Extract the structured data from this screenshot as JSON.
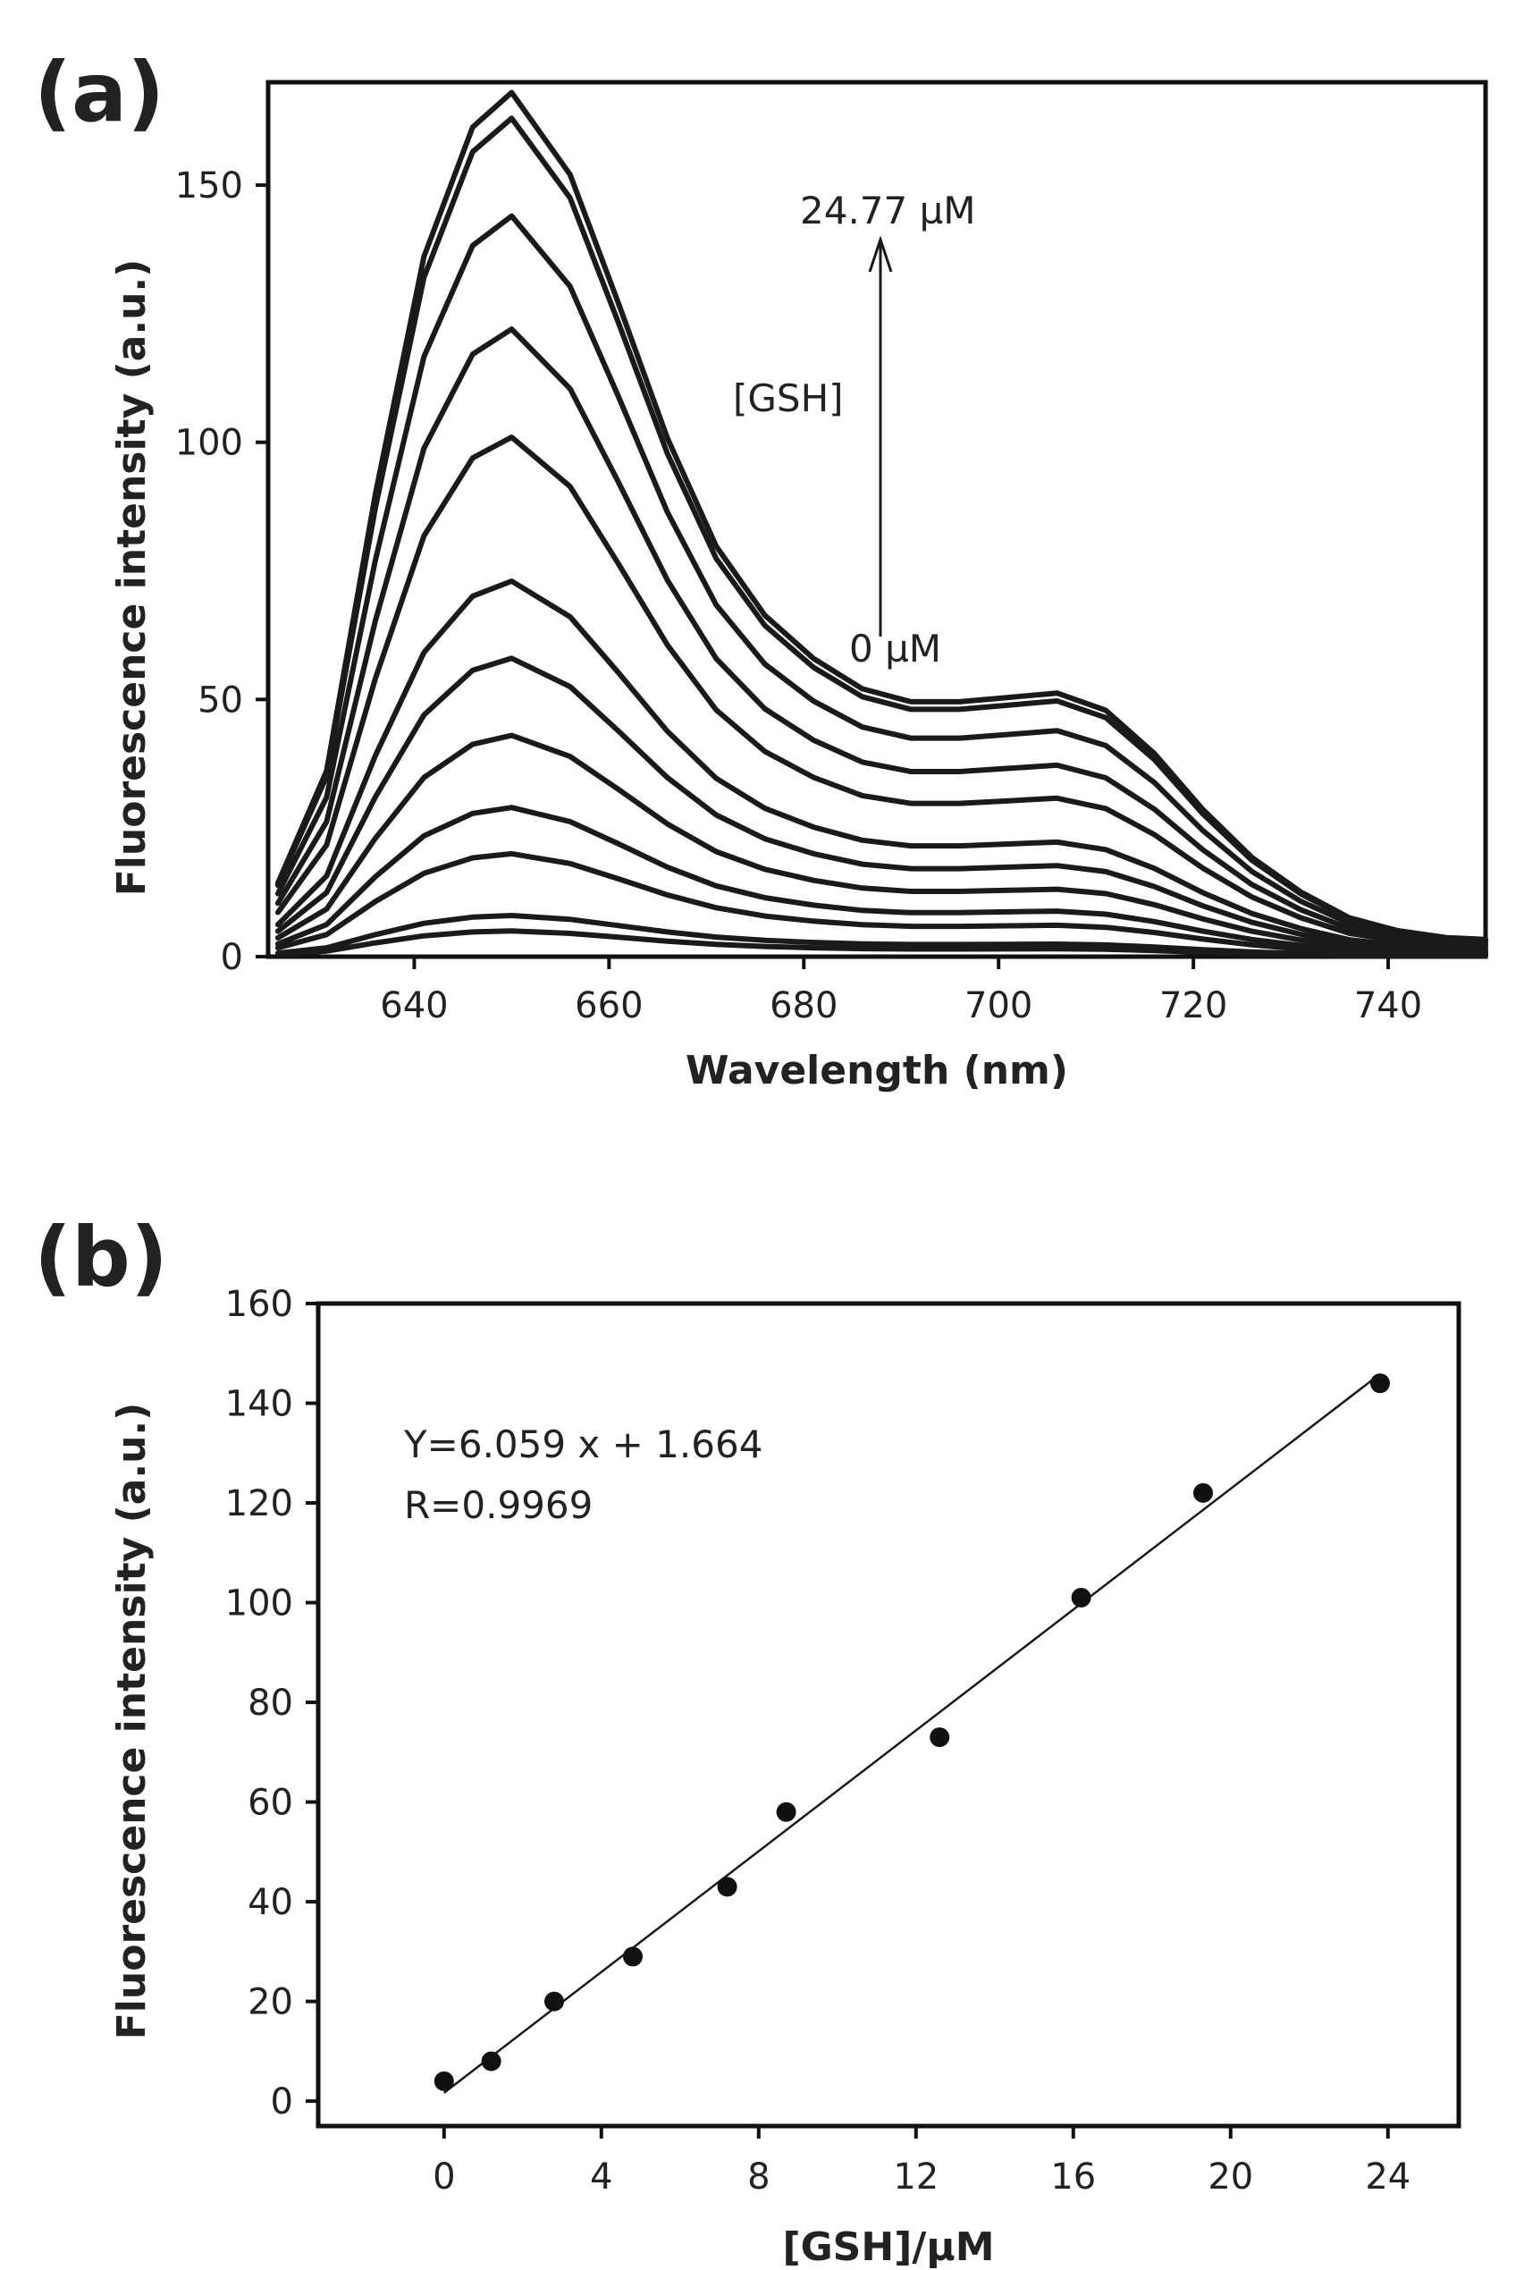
{
  "chart_data": [
    {
      "panel_label": "(a)",
      "type": "line",
      "xlabel": "Wavelength (nm)",
      "ylabel": "Fluorescence intensity (a.u.)",
      "xlim": [
        625,
        750
      ],
      "ylim": [
        0,
        170
      ],
      "xticks": [
        640,
        660,
        680,
        700,
        720,
        740
      ],
      "yticks": [
        0,
        50,
        100,
        150
      ],
      "x": [
        626,
        631,
        636,
        641,
        646,
        650,
        656,
        661,
        666,
        671,
        676,
        681,
        686,
        691,
        696,
        701,
        706,
        711,
        716,
        721,
        726,
        731,
        736,
        741,
        746,
        750
      ],
      "peak_values": [
        5,
        8,
        20,
        29,
        43,
        58,
        73,
        101,
        122,
        144,
        163,
        168
      ],
      "series_note": "GSH concentration increases from 0 µM (bottom curve) to 24.77 µM (top curve)",
      "annotations": {
        "top_conc": "24.77 µM",
        "reagent": "[GSH]",
        "bottom_conc": "0 µM"
      }
    },
    {
      "panel_label": "(b)",
      "type": "scatter",
      "xlabel": "[GSH]/µM",
      "ylabel": "Fluorescence intensity (a.u.)",
      "xlim": [
        -3.2,
        25.8
      ],
      "ylim": [
        -5,
        160
      ],
      "xticks": [
        0,
        4,
        8,
        12,
        16,
        20,
        24
      ],
      "yticks": [
        0,
        20,
        40,
        60,
        80,
        100,
        120,
        140,
        160
      ],
      "points": [
        [
          0,
          4
        ],
        [
          1.2,
          8
        ],
        [
          2.8,
          20
        ],
        [
          4.8,
          29
        ],
        [
          7.2,
          43
        ],
        [
          8.7,
          58
        ],
        [
          12.6,
          73
        ],
        [
          16.2,
          101
        ],
        [
          19.3,
          122
        ],
        [
          23.8,
          144
        ]
      ],
      "fit": {
        "slope": 6.059,
        "intercept": 1.664,
        "x_range": [
          0,
          23.8
        ]
      },
      "equation": "Y=6.059 x + 1.664",
      "r_value": "R=0.9969"
    }
  ]
}
